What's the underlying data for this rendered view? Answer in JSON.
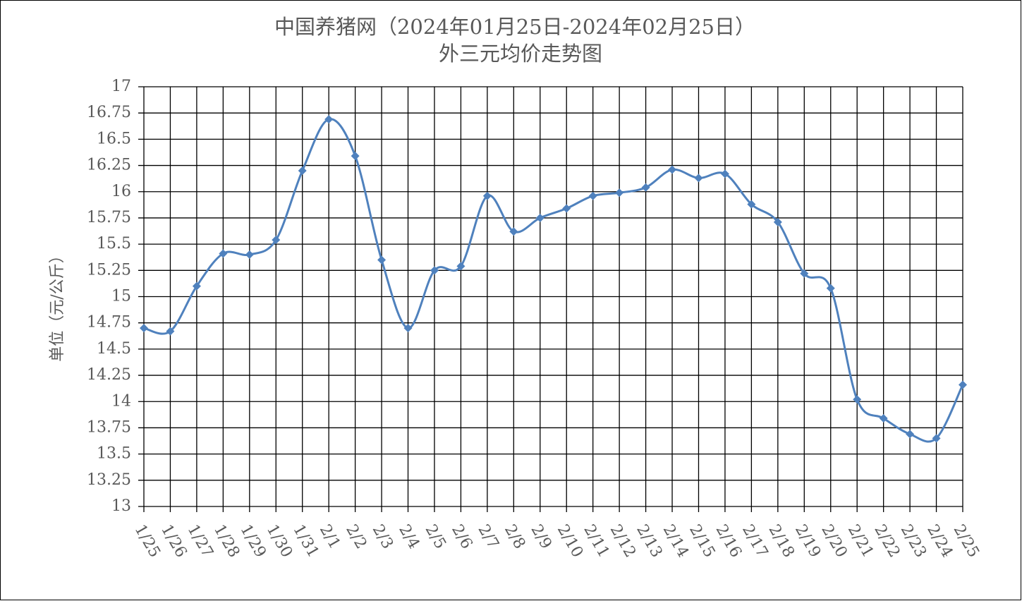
{
  "chart_data": {
    "type": "line",
    "title": "中国养猪网（2024年01月25日-2024年02月25日）",
    "subtitle": "外三元均价走势图",
    "y_label": "单位（元/公斤）",
    "categories": [
      "1/25",
      "1/26",
      "1/27",
      "1/28",
      "1/29",
      "1/30",
      "1/31",
      "2/1",
      "2/2",
      "2/3",
      "2/4",
      "2/5",
      "2/6",
      "2/7",
      "2/8",
      "2/9",
      "2/10",
      "2/11",
      "2/12",
      "2/13",
      "2/14",
      "2/15",
      "2/16",
      "2/17",
      "2/18",
      "2/19",
      "2/20",
      "2/21",
      "2/22",
      "2/23",
      "2/24",
      "2/25"
    ],
    "series": [
      {
        "color": "#4f81bd",
        "values": [
          14.7,
          14.67,
          15.1,
          15.41,
          15.4,
          15.54,
          16.2,
          16.69,
          16.34,
          15.35,
          14.7,
          15.25,
          15.29,
          15.96,
          15.62,
          15.75,
          15.84,
          15.96,
          15.99,
          16.04,
          16.21,
          16.13,
          16.17,
          15.88,
          15.71,
          15.22,
          15.08,
          14.02,
          13.84,
          13.69,
          13.65,
          14.16
        ]
      }
    ],
    "ylim": [
      13,
      17
    ],
    "yticks": [
      13,
      13.25,
      13.5,
      13.75,
      14,
      14.25,
      14.5,
      14.75,
      15,
      15.25,
      15.5,
      15.75,
      16,
      16.25,
      16.5,
      16.75,
      17
    ],
    "grid": true
  }
}
